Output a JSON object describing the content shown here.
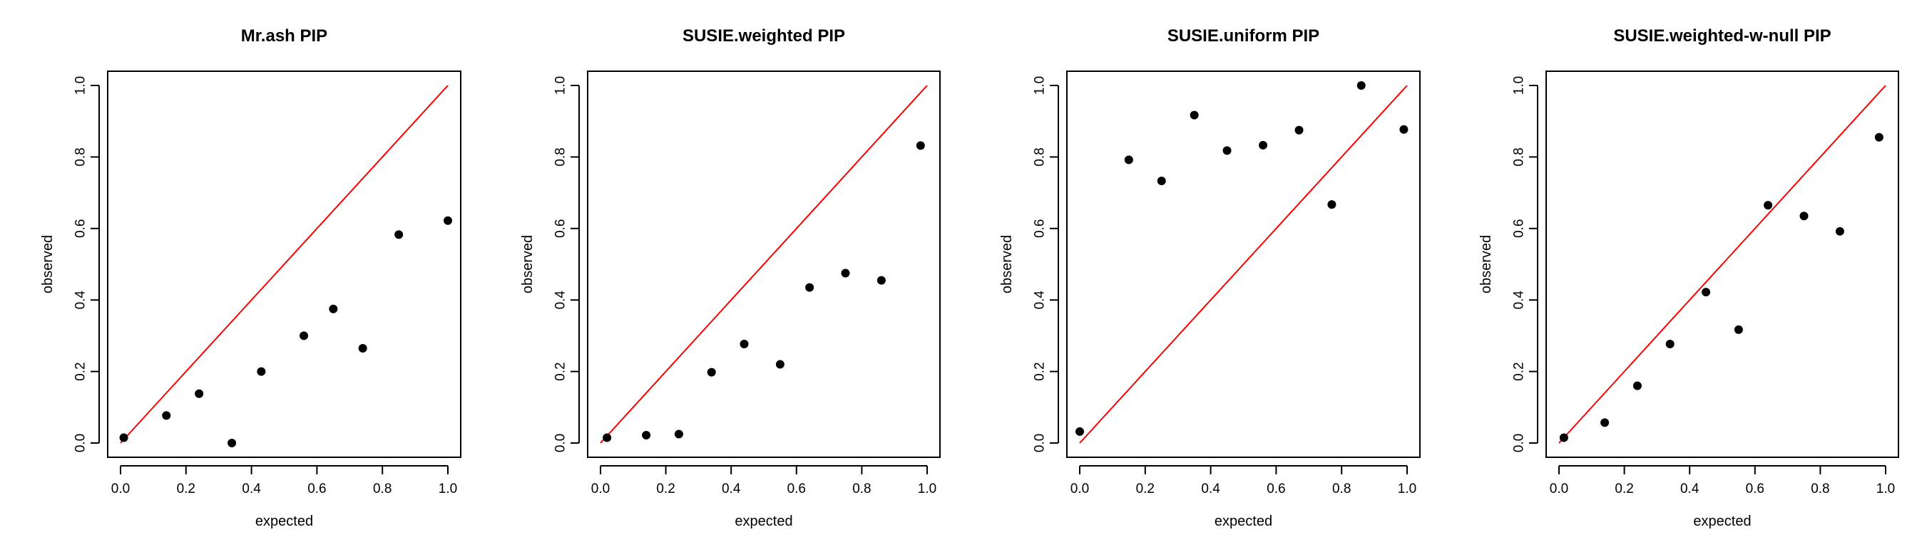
{
  "chart_data": [
    {
      "type": "scatter",
      "title": "Mr.ash PIP",
      "xlabel": "expected",
      "ylabel": "observed",
      "xlim": [
        0,
        1
      ],
      "ylim": [
        0,
        1
      ],
      "xticks": [
        "0.0",
        "0.2",
        "0.4",
        "0.6",
        "0.8",
        "1.0"
      ],
      "yticks": [
        "0.0",
        "0.2",
        "0.4",
        "0.6",
        "0.8",
        "1.0"
      ],
      "reference_line": {
        "from": [
          0,
          0
        ],
        "to": [
          1,
          1
        ],
        "color": "#ff0000"
      },
      "point_color": "#000000",
      "points": [
        [
          0.01,
          0.015
        ],
        [
          0.14,
          0.077
        ],
        [
          0.24,
          0.138
        ],
        [
          0.34,
          0.0
        ],
        [
          0.43,
          0.2
        ],
        [
          0.56,
          0.3
        ],
        [
          0.65,
          0.375
        ],
        [
          0.74,
          0.265
        ],
        [
          0.85,
          0.583
        ],
        [
          1.0,
          0.622
        ]
      ]
    },
    {
      "type": "scatter",
      "title": "SUSIE.weighted PIP",
      "xlabel": "expected",
      "ylabel": "observed",
      "xlim": [
        0,
        1
      ],
      "ylim": [
        0,
        1
      ],
      "xticks": [
        "0.0",
        "0.2",
        "0.4",
        "0.6",
        "0.8",
        "1.0"
      ],
      "yticks": [
        "0.0",
        "0.2",
        "0.4",
        "0.6",
        "0.8",
        "1.0"
      ],
      "reference_line": {
        "from": [
          0,
          0
        ],
        "to": [
          1,
          1
        ],
        "color": "#ff0000"
      },
      "point_color": "#000000",
      "points": [
        [
          0.02,
          0.015
        ],
        [
          0.14,
          0.022
        ],
        [
          0.24,
          0.025
        ],
        [
          0.34,
          0.198
        ],
        [
          0.44,
          0.277
        ],
        [
          0.55,
          0.22
        ],
        [
          0.64,
          0.435
        ],
        [
          0.75,
          0.475
        ],
        [
          0.86,
          0.455
        ],
        [
          0.98,
          0.832
        ]
      ]
    },
    {
      "type": "scatter",
      "title": "SUSIE.uniform PIP",
      "xlabel": "expected",
      "ylabel": "observed",
      "xlim": [
        0,
        1
      ],
      "ylim": [
        0,
        1
      ],
      "xticks": [
        "0.0",
        "0.2",
        "0.4",
        "0.6",
        "0.8",
        "1.0"
      ],
      "yticks": [
        "0.0",
        "0.2",
        "0.4",
        "0.6",
        "0.8",
        "1.0"
      ],
      "reference_line": {
        "from": [
          0,
          0
        ],
        "to": [
          1,
          1
        ],
        "color": "#ff0000"
      },
      "point_color": "#000000",
      "points": [
        [
          0.0,
          0.032
        ],
        [
          0.15,
          0.792
        ],
        [
          0.25,
          0.733
        ],
        [
          0.35,
          0.917
        ],
        [
          0.45,
          0.818
        ],
        [
          0.56,
          0.833
        ],
        [
          0.67,
          0.875
        ],
        [
          0.77,
          0.667
        ],
        [
          0.86,
          1.0
        ],
        [
          0.99,
          0.877
        ]
      ]
    },
    {
      "type": "scatter",
      "title": "SUSIE.weighted-w-null PIP",
      "xlabel": "expected",
      "ylabel": "observed",
      "xlim": [
        0,
        1
      ],
      "ylim": [
        0,
        1
      ],
      "xticks": [
        "0.0",
        "0.2",
        "0.4",
        "0.6",
        "0.8",
        "1.0"
      ],
      "yticks": [
        "0.0",
        "0.2",
        "0.4",
        "0.6",
        "0.8",
        "1.0"
      ],
      "reference_line": {
        "from": [
          0,
          0
        ],
        "to": [
          1,
          1
        ],
        "color": "#ff0000"
      },
      "point_color": "#000000",
      "points": [
        [
          0.015,
          0.015
        ],
        [
          0.14,
          0.057
        ],
        [
          0.24,
          0.16
        ],
        [
          0.34,
          0.277
        ],
        [
          0.45,
          0.422
        ],
        [
          0.55,
          0.317
        ],
        [
          0.64,
          0.665
        ],
        [
          0.75,
          0.635
        ],
        [
          0.86,
          0.592
        ],
        [
          0.98,
          0.855
        ]
      ]
    }
  ]
}
